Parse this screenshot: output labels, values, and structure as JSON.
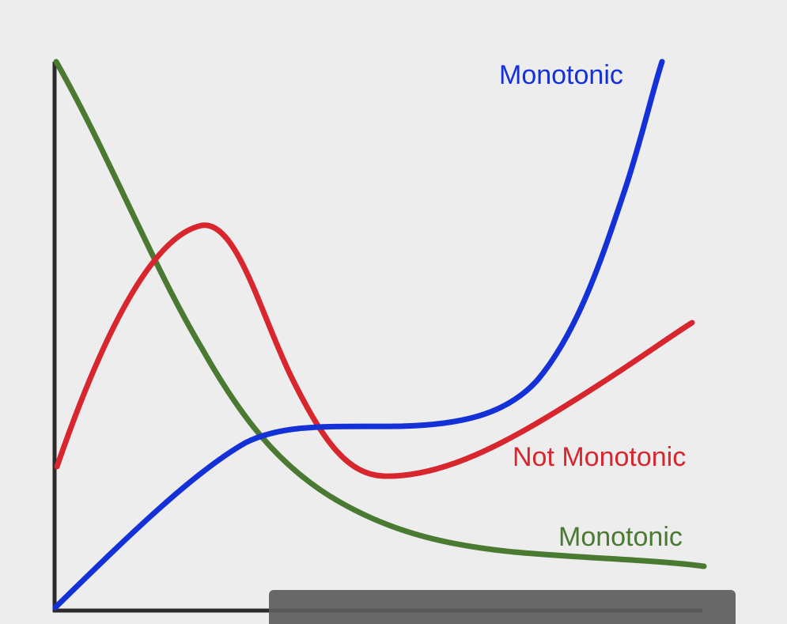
{
  "colors": {
    "background": "#ededed",
    "axis": "#2b2b2b",
    "increasing_curve": "#1431d8",
    "non_monotonic_curve": "#d8262e",
    "decreasing_curve": "#4a7a32",
    "caption_background": "#5c5c5c",
    "caption_text": "#ffffff"
  },
  "labels": {
    "increasing": "Monotonic",
    "non_monotonic": "Not Monotonic",
    "decreasing": "Monotonic"
  },
  "caption": {
    "text": "",
    "visibility": "partially cut off at bottom edge"
  }
}
